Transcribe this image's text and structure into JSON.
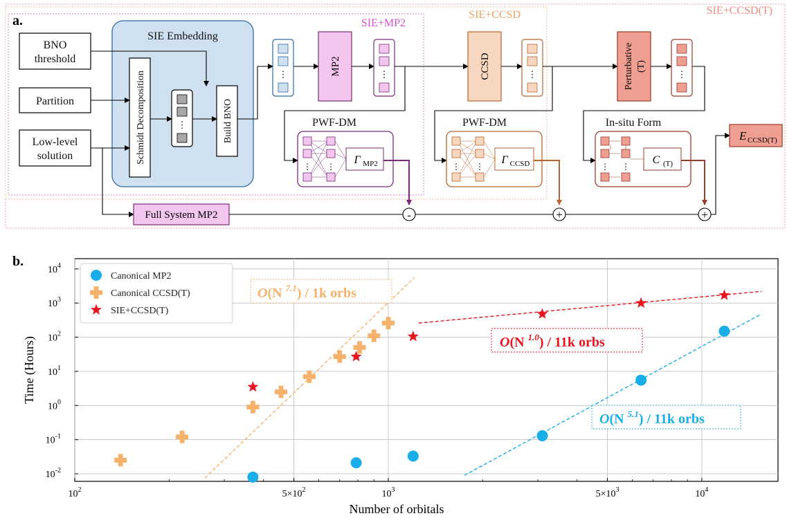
{
  "panel_a": {
    "label": "a.",
    "region_labels": [
      "SIE+MP2",
      "SIE+CCSD",
      "SIE+CCSD(T)"
    ],
    "inputs": {
      "bno_line1": "BNO",
      "bno_line2": "threshold",
      "partition": "Partition",
      "low_line1": "Low-level",
      "low_line2": "solution"
    },
    "sie_title": "SIE Embedding",
    "schmidt": "Schmidt Decomposition",
    "build_bno": "Build BNO",
    "mp2": "MP2",
    "ccsd": "CCSD",
    "pert_line1": "Perturbative",
    "pert_line2": "(T)",
    "pwf1": "PWF-DM",
    "pwf2": "PWF-DM",
    "insitu": "In-situ Form",
    "gamma_mp2": "Γ",
    "gamma_mp2_sub": "MP2",
    "gamma_ccsd": "Γ",
    "gamma_ccsd_sub": "CCSD",
    "c_t": "C",
    "c_t_sub": "(T)",
    "full_mp2": "Full System MP2",
    "minus": "-",
    "plus": "+",
    "e_out": "E",
    "e_out_sub": "CCSD(T)",
    "dots": "⋮",
    "colors": {
      "blue": "#2d6aa8",
      "blue_fill": "#cfe0f0",
      "purple": "#7b2a78",
      "purple_fill": "#f3c6ee",
      "orange": "#b8652e",
      "orange_fill": "#f7d7c0",
      "red": "#9a3a2a",
      "red_fill": "#ef9f92"
    }
  },
  "panel_b": {
    "label": "b.",
    "chart_data": {
      "type": "scatter",
      "xlabel": "Number of orbitals",
      "ylabel": "Time (Hours)",
      "xscale": "log",
      "yscale": "log",
      "xlim": [
        100,
        17500
      ],
      "ylim": [
        0.006,
        20000
      ],
      "x_ticks": [
        {
          "v": 100,
          "label": "10",
          "exp": "2"
        },
        {
          "v": 500,
          "label": "5×10",
          "exp": "2"
        },
        {
          "v": 1000,
          "label": "10",
          "exp": "3"
        },
        {
          "v": 5000,
          "label": "5×10",
          "exp": "3"
        },
        {
          "v": 10000,
          "label": "10",
          "exp": "4"
        }
      ],
      "y_ticks": [
        {
          "v": 0.01,
          "label": "10",
          "exp": "-2"
        },
        {
          "v": 0.1,
          "label": "10",
          "exp": "-1"
        },
        {
          "v": 1,
          "label": "10",
          "exp": "0"
        },
        {
          "v": 10,
          "label": "10",
          "exp": "1"
        },
        {
          "v": 100,
          "label": "10",
          "exp": "2"
        },
        {
          "v": 1000,
          "label": "10",
          "exp": "3"
        },
        {
          "v": 10000,
          "label": "10",
          "exp": "4"
        }
      ],
      "grid": true,
      "legend_position": "top-left",
      "series": [
        {
          "name": "Canonical MP2",
          "marker": "circle",
          "color": "#1aaee8",
          "points": [
            [
              370,
              0.008
            ],
            [
              790,
              0.021
            ],
            [
              1200,
              0.033
            ],
            [
              3100,
              0.13
            ],
            [
              6400,
              5.5
            ],
            [
              11800,
              150
            ]
          ]
        },
        {
          "name": "Canonical CCSD(T)",
          "marker": "plus",
          "color": "#f6b26b",
          "points": [
            [
              140,
              0.025
            ],
            [
              220,
              0.12
            ],
            [
              370,
              0.9
            ],
            [
              455,
              2.5
            ],
            [
              560,
              7.0
            ],
            [
              700,
              27
            ],
            [
              810,
              50
            ],
            [
              900,
              110
            ],
            [
              1000,
              260
            ]
          ]
        },
        {
          "name": "SIE+CCSD(T)",
          "marker": "star",
          "color": "#e8141e",
          "points": [
            [
              370,
              3.5
            ],
            [
              790,
              27
            ],
            [
              1200,
              105
            ],
            [
              3100,
              480
            ],
            [
              6400,
              1000
            ],
            [
              11800,
              1700
            ]
          ]
        }
      ],
      "fits": [
        {
          "color": "#f6b26b",
          "x": [
            260,
            1210
          ],
          "y": [
            0.0075,
            5500
          ]
        },
        {
          "color": "#e8141e",
          "x": [
            1250,
            15500
          ],
          "y": [
            260,
            2200
          ]
        },
        {
          "color": "#1aaee8",
          "x": [
            1750,
            15500
          ],
          "y": [
            0.009,
            480
          ]
        }
      ],
      "annotations": [
        {
          "prefix": "O",
          "base": "(N ",
          "exp": "7.1",
          "suffix": ") / 1k orbs",
          "color": "#f6b26b"
        },
        {
          "prefix": "O",
          "base": "(N ",
          "exp": "1.0",
          "suffix": ") / 11k orbs",
          "color": "#e8141e"
        },
        {
          "prefix": "O",
          "base": "(N ",
          "exp": "5.1",
          "suffix": ") / 11k orbs",
          "color": "#1aaee8"
        }
      ]
    }
  }
}
